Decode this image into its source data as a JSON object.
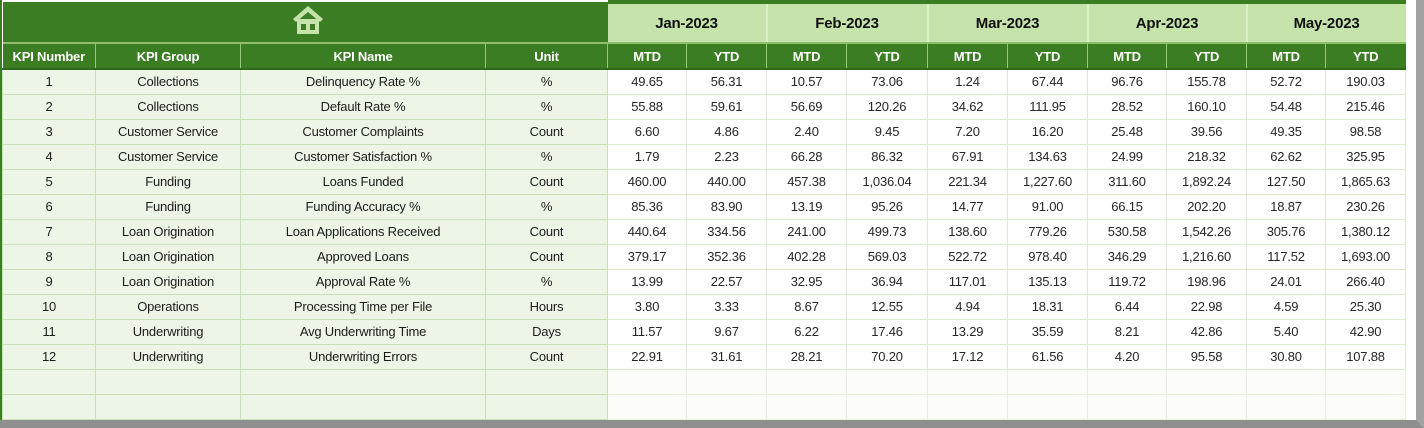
{
  "colors": {
    "dark_green": "#3a7d22",
    "light_green": "#c5e3ab",
    "pale_green_row": "#edf5e7",
    "grid_line": "#c9dfb8",
    "header_text": "#ffffff",
    "window_border": "#9b9b9b"
  },
  "icons": {
    "home": "house-glyph"
  },
  "header": {
    "row_labels": [
      "KPI Number",
      "KPI Group",
      "KPI Name",
      "Unit"
    ],
    "months": [
      "Jan-2023",
      "Feb-2023",
      "Mar-2023",
      "Apr-2023",
      "May-2023"
    ],
    "sub_columns": [
      "MTD",
      "YTD"
    ]
  },
  "rows": [
    {
      "kpi_number": "1",
      "kpi_group": "Collections",
      "kpi_name": "Delinquency Rate %",
      "unit": "%",
      "values": [
        "49.65",
        "56.31",
        "10.57",
        "73.06",
        "1.24",
        "67.44",
        "96.76",
        "155.78",
        "52.72",
        "190.03"
      ]
    },
    {
      "kpi_number": "2",
      "kpi_group": "Collections",
      "kpi_name": "Default Rate %",
      "unit": "%",
      "values": [
        "55.88",
        "59.61",
        "56.69",
        "120.26",
        "34.62",
        "111.95",
        "28.52",
        "160.10",
        "54.48",
        "215.46"
      ]
    },
    {
      "kpi_number": "3",
      "kpi_group": "Customer Service",
      "kpi_name": "Customer Complaints",
      "unit": "Count",
      "values": [
        "6.60",
        "4.86",
        "2.40",
        "9.45",
        "7.20",
        "16.20",
        "25.48",
        "39.56",
        "49.35",
        "98.58"
      ]
    },
    {
      "kpi_number": "4",
      "kpi_group": "Customer Service",
      "kpi_name": "Customer Satisfaction %",
      "unit": "%",
      "values": [
        "1.79",
        "2.23",
        "66.28",
        "86.32",
        "67.91",
        "134.63",
        "24.99",
        "218.32",
        "62.62",
        "325.95"
      ]
    },
    {
      "kpi_number": "5",
      "kpi_group": "Funding",
      "kpi_name": "Loans Funded",
      "unit": "Count",
      "values": [
        "460.00",
        "440.00",
        "457.38",
        "1,036.04",
        "221.34",
        "1,227.60",
        "311.60",
        "1,892.24",
        "127.50",
        "1,865.63"
      ]
    },
    {
      "kpi_number": "6",
      "kpi_group": "Funding",
      "kpi_name": "Funding Accuracy %",
      "unit": "%",
      "values": [
        "85.36",
        "83.90",
        "13.19",
        "95.26",
        "14.77",
        "91.00",
        "66.15",
        "202.20",
        "18.87",
        "230.26"
      ]
    },
    {
      "kpi_number": "7",
      "kpi_group": "Loan Origination",
      "kpi_name": "Loan Applications Received",
      "unit": "Count",
      "values": [
        "440.64",
        "334.56",
        "241.00",
        "499.73",
        "138.60",
        "779.26",
        "530.58",
        "1,542.26",
        "305.76",
        "1,380.12"
      ]
    },
    {
      "kpi_number": "8",
      "kpi_group": "Loan Origination",
      "kpi_name": "Approved Loans",
      "unit": "Count",
      "values": [
        "379.17",
        "352.36",
        "402.28",
        "569.03",
        "522.72",
        "978.40",
        "346.29",
        "1,216.60",
        "117.52",
        "1,693.00"
      ]
    },
    {
      "kpi_number": "9",
      "kpi_group": "Loan Origination",
      "kpi_name": "Approval Rate %",
      "unit": "%",
      "values": [
        "13.99",
        "22.57",
        "32.95",
        "36.94",
        "117.01",
        "135.13",
        "119.72",
        "198.96",
        "24.01",
        "266.40"
      ]
    },
    {
      "kpi_number": "10",
      "kpi_group": "Operations",
      "kpi_name": "Processing Time per File",
      "unit": "Hours",
      "values": [
        "3.80",
        "3.33",
        "8.67",
        "12.55",
        "4.94",
        "18.31",
        "6.44",
        "22.98",
        "4.59",
        "25.30"
      ]
    },
    {
      "kpi_number": "11",
      "kpi_group": "Underwriting",
      "kpi_name": "Avg Underwriting Time",
      "unit": "Days",
      "values": [
        "11.57",
        "9.67",
        "6.22",
        "17.46",
        "13.29",
        "35.59",
        "8.21",
        "42.86",
        "5.40",
        "42.90"
      ]
    },
    {
      "kpi_number": "12",
      "kpi_group": "Underwriting",
      "kpi_name": "Underwriting Errors",
      "unit": "Count",
      "values": [
        "22.91",
        "31.61",
        "28.21",
        "70.20",
        "17.12",
        "61.56",
        "4.20",
        "95.58",
        "30.80",
        "107.88"
      ]
    }
  ],
  "empty_row_count": 2
}
